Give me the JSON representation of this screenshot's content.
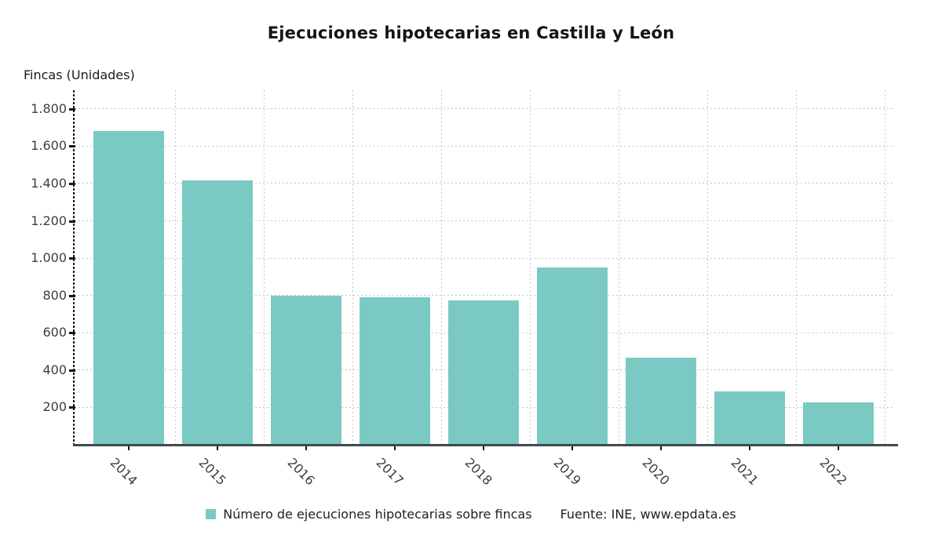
{
  "title": "Ejecuciones hipotecarias en Castilla y León",
  "y_axis_title": "Fincas (Unidades)",
  "legend": {
    "label": "Número de ejecuciones hipotecarias sobre fincas"
  },
  "source": {
    "label": "Fuente: INE, www.epdata.es"
  },
  "colors": {
    "bar": "#7acac3",
    "grid": "#c6c6c6",
    "axis": "#161616",
    "baseline": "#3e4a4d",
    "tick_text": "#3d3d3d"
  },
  "chart_data": {
    "type": "bar",
    "title": "Ejecuciones hipotecarias en Castilla y León",
    "xlabel": "",
    "ylabel": "Fincas (Unidades)",
    "categories": [
      "2014",
      "2015",
      "2016",
      "2017",
      "2018",
      "2019",
      "2020",
      "2021",
      "2022"
    ],
    "values": [
      1680,
      1415,
      800,
      790,
      775,
      948,
      465,
      288,
      227
    ],
    "series_name": "Número de ejecuciones hipotecarias sobre fincas",
    "ylim": [
      0,
      1900
    ],
    "ytick_step": 200,
    "yticks": [
      200,
      400,
      600,
      800,
      1000,
      1200,
      1400,
      1600,
      1800
    ],
    "ytick_labels": [
      "200",
      "400",
      "600",
      "800",
      "1.000",
      "1.200",
      "1.400",
      "1.600",
      "1.800"
    ],
    "grid": true,
    "legend_position": "bottom",
    "source_text": "Fuente: INE, www.epdata.es"
  }
}
